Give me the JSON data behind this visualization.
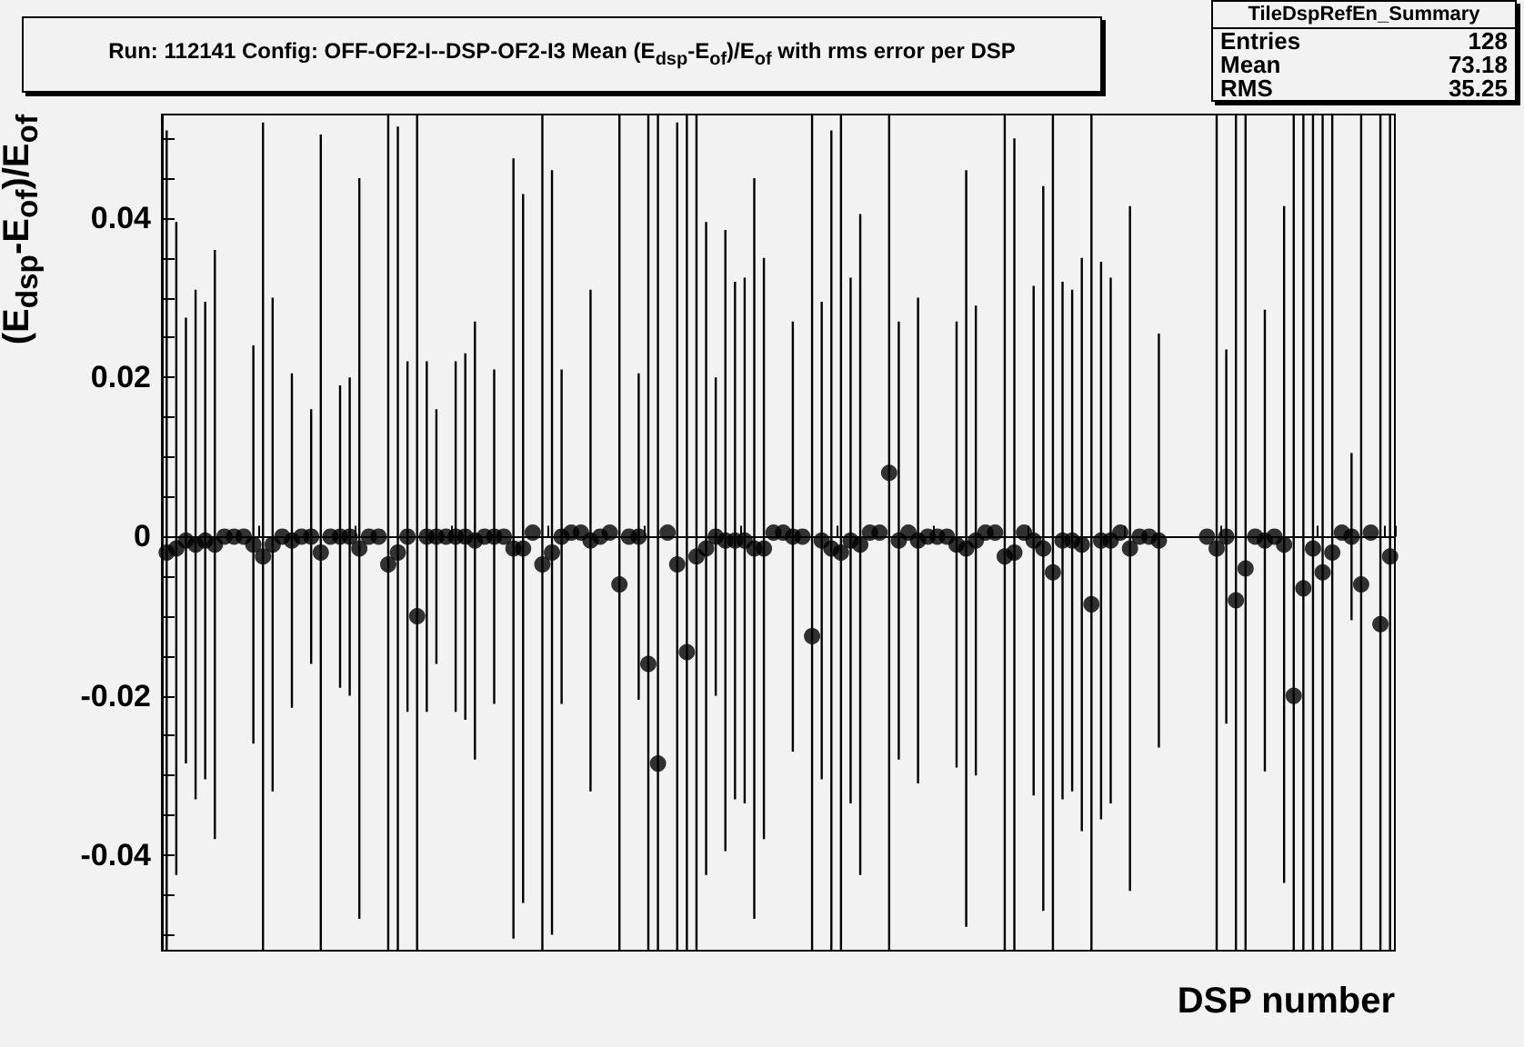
{
  "chart_data": {
    "type": "scatter",
    "title": "Run: 112141 Config: OFF-OF2-I--DSP-OF2-I3 Mean (E$_{dsp}$-E$_{of}$)/E$_{of}$ with rms error per DSP",
    "xlabel": "DSP number",
    "ylabel": "(E$_{dsp}$-E$_{of}$)/E$_{of}$",
    "annotations": [
      "TileDspRefEn_Summary",
      "Entries",
      "128",
      "Mean",
      "73.18",
      "RMS",
      "35.25"
    ],
    "categories": [
      null,
      null,
      null,
      null,
      null,
      null,
      null,
      null,
      null,
      null,
      null,
      null,
      null,
      null,
      null,
      null,
      null,
      null,
      null,
      null,
      null,
      null,
      null,
      null,
      null,
      null,
      null,
      null,
      null,
      null,
      null,
      null,
      null,
      null,
      null,
      null,
      null,
      null,
      null,
      null,
      null,
      null,
      null,
      null,
      null,
      null,
      null,
      null,
      null,
      null,
      null,
      null,
      null,
      null,
      null,
      null,
      null,
      null,
      null,
      null,
      null,
      null,
      null,
      null,
      null,
      null,
      null,
      null,
      null,
      null,
      null,
      null,
      null,
      null,
      null,
      null,
      null,
      null,
      null,
      null,
      null,
      null,
      null,
      null,
      null,
      null,
      null,
      null,
      null,
      null,
      null,
      null,
      null,
      null,
      null,
      null,
      null,
      null,
      null,
      null,
      null,
      null,
      null,
      null,
      null,
      null,
      null,
      null,
      null,
      null,
      null,
      null,
      null,
      null,
      null,
      null,
      null,
      null,
      null,
      null,
      null,
      null,
      null,
      null,
      null,
      null,
      null,
      null
    ],
    "series": [
      {
        "color": "#000000",
        "values": [
          -0.002,
          -0.0015,
          -0.0005,
          -0.001,
          -0.0005,
          -0.001,
          0,
          0,
          0,
          -0.001,
          -0.0025,
          -0.001,
          0,
          -0.0005,
          0,
          0,
          -0.002,
          0,
          0,
          0,
          -0.0015,
          0,
          0,
          -0.0035,
          -0.002,
          0,
          -0.01,
          0,
          0,
          0,
          0,
          0,
          -0.0005,
          0,
          0,
          0,
          -0.0015,
          -0.0015,
          0.0005,
          -0.0035,
          -0.002,
          0,
          0.0005,
          0.0005,
          -0.0005,
          0,
          0.0005,
          -0.006,
          0,
          0,
          -0.016,
          -0.0285,
          0.0005,
          -0.0035,
          -0.0145,
          -0.0025,
          -0.0015,
          0,
          -0.0005,
          -0.0005,
          -0.0005,
          -0.0015,
          -0.0015,
          0.0005,
          0.0005,
          0,
          0,
          -0.0125,
          -0.0005,
          -0.0015,
          -0.002,
          -0.0005,
          -0.001,
          0.0005,
          0.0005,
          0.008,
          -0.0005,
          0.0005,
          -0.0005,
          0,
          0,
          0,
          -0.001,
          -0.0015,
          -0.0005,
          0.0005,
          0.0005,
          -0.0025,
          -0.002,
          0.0005,
          -0.0005,
          -0.0015,
          -0.0045,
          -0.0005,
          -0.0005,
          -0.001,
          -0.0085,
          -0.0005,
          -0.0005,
          0.0005,
          -0.0015,
          0,
          0,
          -0.0005,
          null,
          null,
          null,
          null,
          0,
          -0.0015,
          0,
          -0.008,
          -0.004,
          0,
          -0.0005,
          0,
          -0.001,
          -0.02,
          -0.0065,
          -0.0015,
          -0.0045,
          -0.002,
          0.0005,
          0,
          -0.006,
          0.0005,
          -0.011,
          -0.0025
        ],
        "errors": [
          [
            -0.052,
            0.051
          ],
          0.041,
          0.028,
          0.032,
          0.03,
          0.037,
          null,
          null,
          null,
          0.025,
          [
            -0.052,
            0.052
          ],
          0.031,
          null,
          0.021,
          null,
          0.016,
          [
            -0.052,
            0.0505
          ],
          null,
          0.019,
          0.02,
          0.0465,
          null,
          null,
          [
            -0.052,
            0.053
          ],
          [
            -0.052,
            0.0515
          ],
          0.022,
          [
            -0.052,
            0.053
          ],
          0.022,
          0.016,
          null,
          0.022,
          0.023,
          0.0275,
          null,
          0.021,
          null,
          0.049,
          0.0445,
          null,
          [
            -0.052,
            0.053
          ],
          0.048,
          0.021,
          null,
          null,
          0.0315,
          null,
          null,
          [
            -0.052,
            0.053
          ],
          null,
          0.0205,
          [
            -0.052,
            0.053
          ],
          [
            -0.052,
            0.053
          ],
          null,
          [
            -0.052,
            0.052
          ],
          [
            -0.052,
            0.053
          ],
          [
            -0.052,
            0.053
          ],
          0.041,
          0.02,
          0.039,
          0.0325,
          0.033,
          0.0465,
          0.0365,
          null,
          null,
          0.027,
          null,
          [
            -0.052,
            0.053
          ],
          0.03,
          [
            -0.052,
            0.051
          ],
          [
            -0.052,
            0.053
          ],
          0.033,
          0.0415,
          null,
          null,
          [
            -0.052,
            0.053
          ],
          0.0275,
          null,
          0.0305,
          null,
          null,
          null,
          0.028,
          0.0475,
          0.0295,
          null,
          null,
          [
            -0.052,
            0.053
          ],
          [
            -0.052,
            0.05
          ],
          null,
          0.032,
          0.0455,
          [
            -0.052,
            0.053
          ],
          0.0325,
          0.0315,
          0.036,
          [
            -0.052,
            0.053
          ],
          0.035,
          0.033,
          null,
          0.043,
          null,
          null,
          0.026,
          null,
          null,
          null,
          null,
          null,
          [
            -0.052,
            0.053
          ],
          0.0235,
          [
            -0.052,
            0.053
          ],
          [
            -0.052,
            0.053
          ],
          null,
          0.029,
          null,
          0.0425,
          [
            -0.052,
            0.053
          ],
          [
            -0.052,
            0.053
          ],
          [
            -0.052,
            0.053
          ],
          [
            -0.052,
            0.053
          ],
          [
            -0.052,
            0.053
          ],
          null,
          0.0105,
          [
            -0.052,
            0.053
          ],
          null,
          [
            -0.052,
            0.053
          ],
          [
            -0.052,
            0.053
          ]
        ]
      }
    ],
    "ylim": [
      -0.052,
      0.053
    ],
    "yticks": [
      {
        "value": -0.05,
        "label": null
      },
      {
        "value": -0.045,
        "label": null
      },
      -0.04,
      {
        "value": -0.035,
        "label": null
      },
      {
        "value": -0.03,
        "label": null
      },
      {
        "value": -0.025,
        "label": null
      },
      -0.02,
      {
        "value": -0.015,
        "label": null
      },
      {
        "value": -0.01,
        "label": null
      },
      {
        "value": -0.005,
        "label": null
      },
      0,
      {
        "value": 0.005,
        "label": null
      },
      {
        "value": 0.01,
        "label": null
      },
      {
        "value": 0.015,
        "label": null
      },
      0.02,
      {
        "value": 0.025,
        "label": null
      },
      {
        "value": 0.03,
        "label": null
      },
      {
        "value": 0.035,
        "label": null
      },
      0.04,
      {
        "value": 0.045,
        "label": null
      },
      {
        "value": 0.05,
        "label": null
      }
    ],
    "tick_labels": "y",
    "marker": "circle"
  }
}
